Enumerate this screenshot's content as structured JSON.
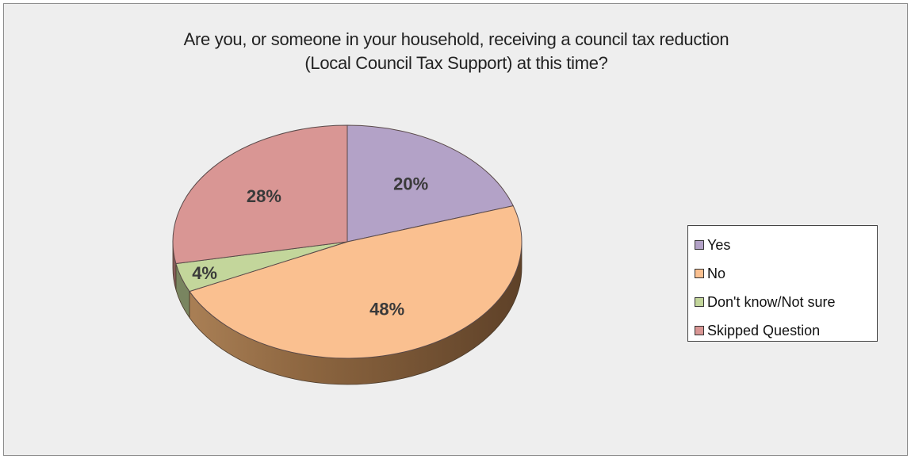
{
  "chart_data": {
    "type": "pie",
    "title_lines": [
      "Are you, or someone in your household, receiving a council tax reduction",
      "(Local Council Tax Support) at this time?"
    ],
    "slices": [
      {
        "label": "Yes",
        "value": 20,
        "display": "20%",
        "color": "#b3a2c7"
      },
      {
        "label": "No",
        "value": 48,
        "display": "48%",
        "color": "#fac090"
      },
      {
        "label": "Don't know/Not sure",
        "value": 4,
        "display": "4%",
        "color": "#c3d69b"
      },
      {
        "label": "Skipped Question",
        "value": 28,
        "display": "28%",
        "color": "#d99694"
      }
    ],
    "legend": {
      "placement": "right"
    }
  }
}
